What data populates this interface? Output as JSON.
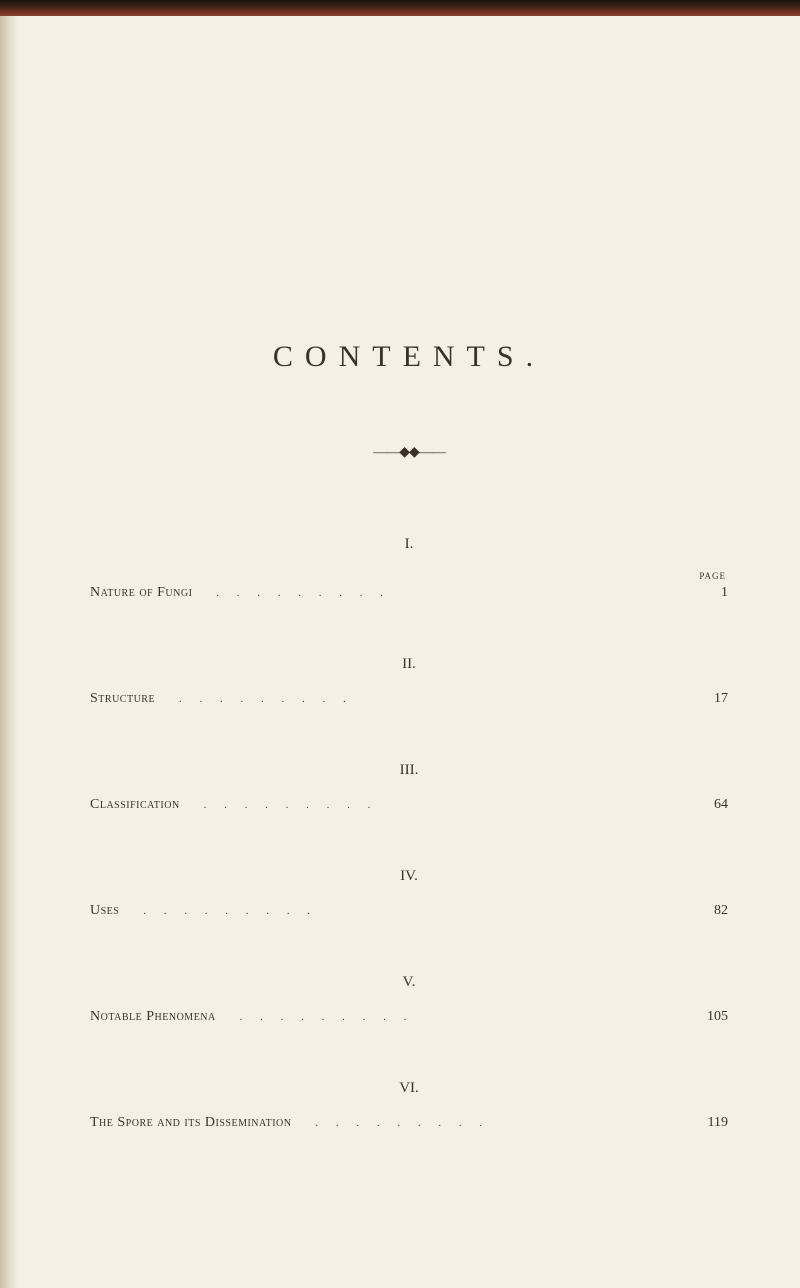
{
  "title": "CONTENTS.",
  "divider": "——◆◆——",
  "page_label": "PAGE",
  "sections": [
    {
      "roman": "I.",
      "name": "Nature of Fungi",
      "page": "1"
    },
    {
      "roman": "II.",
      "name": "Structure",
      "page": "17"
    },
    {
      "roman": "III.",
      "name": "Classification",
      "page": "64"
    },
    {
      "roman": "IV.",
      "name": "Uses",
      "page": "82"
    },
    {
      "roman": "V.",
      "name": "Notable Phenomena",
      "page": "105"
    },
    {
      "roman": "VI.",
      "name": "The Spore and its Dissemination",
      "page": "119"
    }
  ],
  "dots": ".........",
  "colors": {
    "background": "#f5f0e4",
    "text": "#3a3228"
  }
}
